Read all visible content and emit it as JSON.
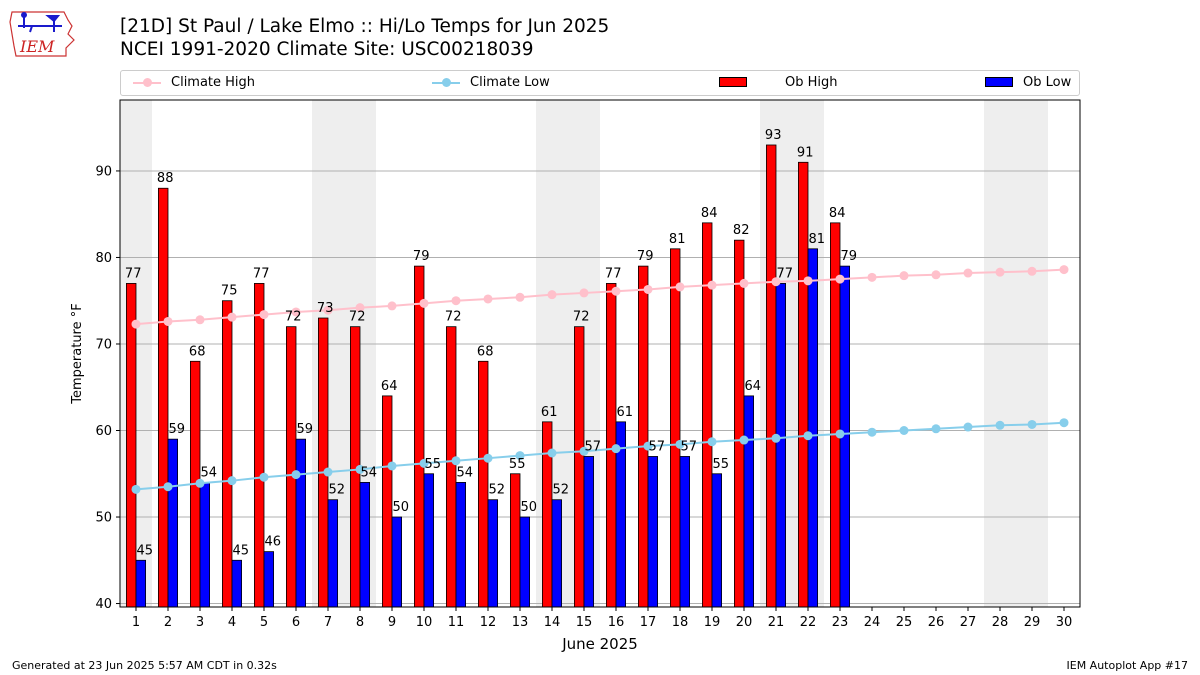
{
  "logo": {
    "text": "IEM",
    "icon": "iowa-state-outline-with-weather-instruments"
  },
  "header": {
    "title_line1": "[21D] St Paul / Lake Elmo :: Hi/Lo Temps for Jun 2025",
    "title_line2": "NCEI 1991-2020 Climate Site: USC00218039"
  },
  "legend": {
    "items": [
      {
        "label": "Climate High",
        "kind": "line-marker",
        "color": "#ffc0cb"
      },
      {
        "label": "Climate Low",
        "kind": "line-marker",
        "color": "#87ceeb"
      },
      {
        "label": "Ob High",
        "kind": "bar",
        "color": "#ff0000"
      },
      {
        "label": "Ob Low",
        "kind": "bar",
        "color": "#0000ff"
      }
    ]
  },
  "footer": {
    "generated": "Generated at 23 Jun 2025 5:57 AM CDT in 0.32s",
    "app": "IEM Autoplot App #17"
  },
  "chart_data": {
    "type": "bar",
    "xlabel": "June 2025",
    "ylabel": "Temperature °F",
    "ylim": [
      39.6,
      98.2
    ],
    "yticks": [
      40,
      50,
      60,
      70,
      80,
      90
    ],
    "grid": "horizontal",
    "x": [
      1,
      2,
      3,
      4,
      5,
      6,
      7,
      8,
      9,
      10,
      11,
      12,
      13,
      14,
      15,
      16,
      17,
      18,
      19,
      20,
      21,
      22,
      23,
      24,
      25,
      26,
      27,
      28,
      29,
      30
    ],
    "weekend_days": [
      1,
      7,
      8,
      14,
      15,
      21,
      22,
      28,
      29
    ],
    "series": [
      {
        "name": "Ob High",
        "type": "bar",
        "color": "#ff0000",
        "values": [
          77,
          88,
          68,
          75,
          77,
          72,
          73,
          72,
          64,
          79,
          72,
          68,
          55,
          61,
          72,
          77,
          79,
          81,
          84,
          82,
          93,
          91,
          84,
          null,
          null,
          null,
          null,
          null,
          null,
          null
        ]
      },
      {
        "name": "Ob Low",
        "type": "bar",
        "color": "#0000ff",
        "values": [
          45,
          59,
          54,
          45,
          46,
          59,
          52,
          54,
          50,
          55,
          54,
          52,
          50,
          52,
          57,
          61,
          57,
          57,
          55,
          64,
          77,
          81,
          79,
          null,
          null,
          null,
          null,
          null,
          null,
          null
        ]
      },
      {
        "name": "Climate High",
        "type": "line",
        "color": "#ffc0cb",
        "values": [
          72.3,
          72.6,
          72.8,
          73.1,
          73.4,
          73.7,
          73.9,
          74.2,
          74.4,
          74.7,
          75.0,
          75.2,
          75.4,
          75.7,
          75.9,
          76.1,
          76.3,
          76.6,
          76.8,
          77.0,
          77.2,
          77.3,
          77.5,
          77.7,
          77.9,
          78.0,
          78.2,
          78.3,
          78.4,
          78.6
        ]
      },
      {
        "name": "Climate Low",
        "type": "line",
        "color": "#87ceeb",
        "values": [
          53.2,
          53.5,
          53.9,
          54.2,
          54.6,
          54.9,
          55.2,
          55.5,
          55.9,
          56.2,
          56.5,
          56.8,
          57.1,
          57.4,
          57.6,
          57.9,
          58.2,
          58.4,
          58.7,
          58.9,
          59.1,
          59.4,
          59.6,
          59.8,
          60.0,
          60.2,
          60.4,
          60.6,
          60.7,
          60.9
        ]
      }
    ]
  }
}
